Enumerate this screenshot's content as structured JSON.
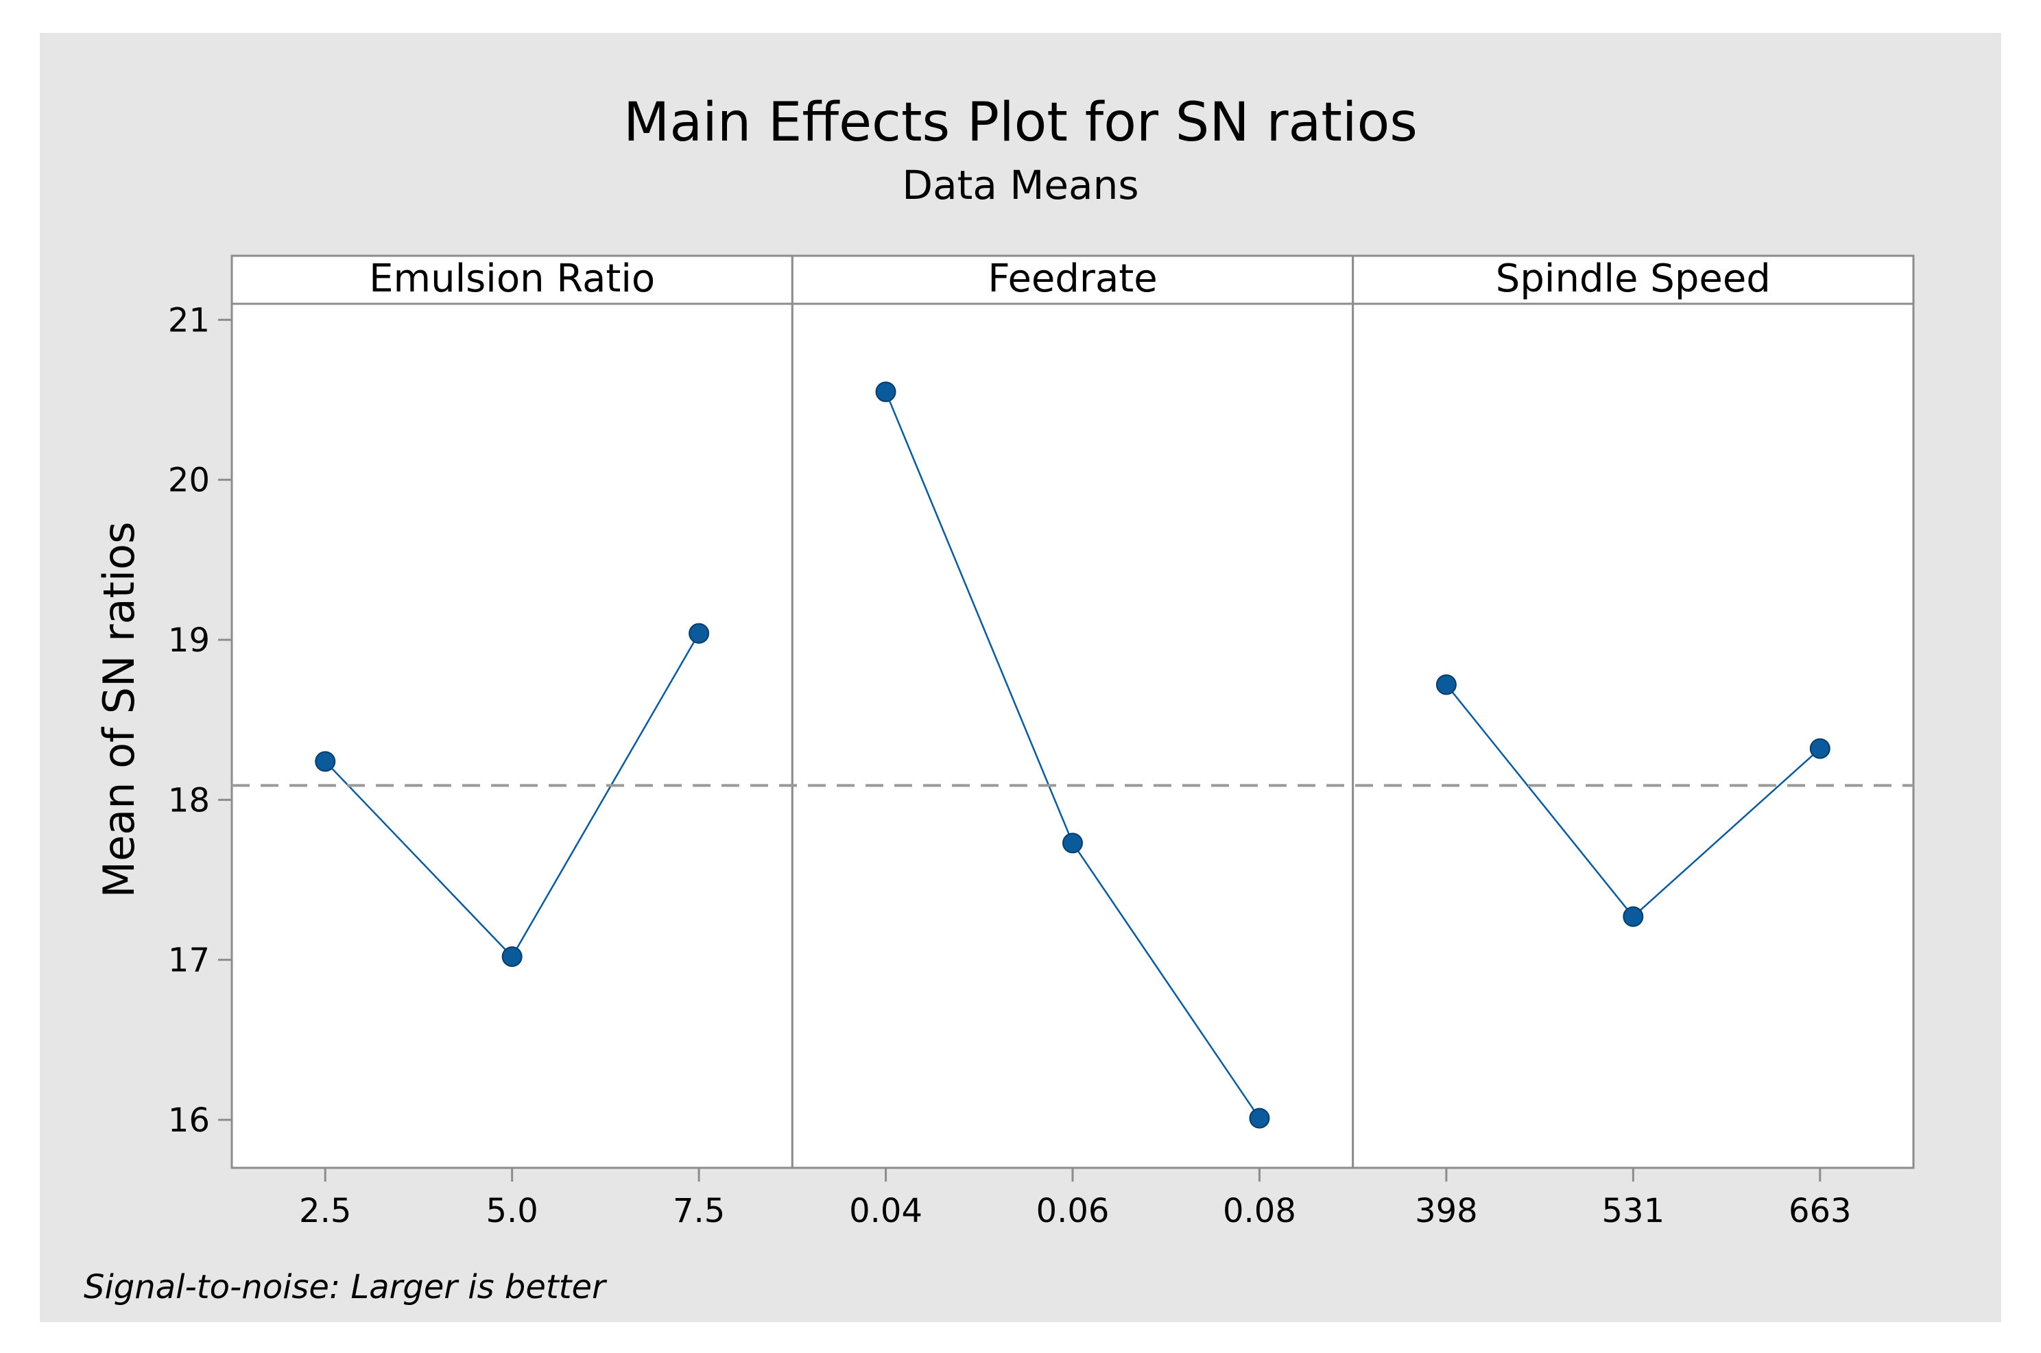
{
  "chart_data": {
    "type": "line",
    "title": "Main Effects Plot for SN ratios",
    "subtitle": "Data Means",
    "ylabel": "Mean of SN ratios",
    "ylim": [
      15.7,
      21.1
    ],
    "yticks": [
      16,
      17,
      18,
      19,
      20,
      21
    ],
    "reference_line": 18.09,
    "footnote": "Signal-to-noise: Larger is better",
    "panels": [
      {
        "name": "Emulsion Ratio",
        "categories": [
          "2.5",
          "5.0",
          "7.5"
        ],
        "values": [
          18.24,
          17.02,
          19.04
        ]
      },
      {
        "name": "Feedrate",
        "categories": [
          "0.04",
          "0.06",
          "0.08"
        ],
        "values": [
          20.55,
          17.73,
          16.01
        ]
      },
      {
        "name": "Spindle Speed",
        "categories": [
          "398",
          "531",
          "663"
        ],
        "values": [
          18.72,
          17.27,
          18.32
        ]
      }
    ]
  },
  "colors": {
    "page": "#ffffff",
    "figure_bg": "#e6e6e6",
    "plot_bg": "#ffffff",
    "frame": "#8c8c8c",
    "series": "#0a5a9c",
    "reference": "#9a9a9a",
    "text": "#000000"
  }
}
